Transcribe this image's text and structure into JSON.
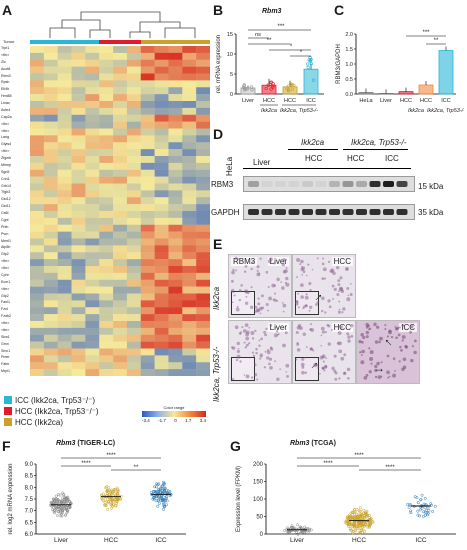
{
  "panels": {
    "A": {
      "label": "A",
      "row_header": "Tumor",
      "rows": [
        "Trpt1",
        "<tbr>",
        "Zic",
        "Acot8",
        "Rbm3",
        "Rpsh",
        "Eif4h",
        "Hmt85",
        "Lmac",
        "Actn4",
        "Cap2a",
        "<tbr>",
        "<tbr>",
        "Lang",
        "Glyts4",
        "<tbr>",
        "Zfgmb",
        "Mhmp",
        "Sgn5",
        "Cnn1",
        "Grb14",
        "Tfgb3",
        "Gst12",
        "Gst11",
        "Ca6l",
        "Cgnl",
        "Prkh",
        "Pvrn",
        "Mmrl1",
        "Atp5b",
        "Gtp2",
        "<tbr>",
        "<tbr>",
        "Cphr",
        "Ecm1",
        "<tbr>",
        "Gtp2",
        "Fanl1",
        "Fzxt",
        "Fzdb2",
        "<tbr>",
        "<tbr>",
        "Skw1",
        "Gmn",
        "Smc1",
        "Pmer",
        "Fatm",
        "Mrpl1"
      ],
      "colorbar_title": "Color range",
      "colorbar_ticks": [
        "-3.4",
        "-1.7",
        "0",
        "1.7",
        "3.4"
      ],
      "groups": [
        {
          "name": "ICC",
          "genotype": "(Ikk2ca, Trp53-/-)",
          "color": "#2ab6d6"
        },
        {
          "name": "HCC",
          "genotype": "(Ikk2ca, Trp53-/-)",
          "color": "#e31a2c"
        },
        {
          "name": "HCC",
          "genotype": "(Ikk2ca)",
          "color": "#c9a227"
        }
      ],
      "legend": [
        {
          "text": "ICC (Ikk2ca, Trp53⁻/⁻)",
          "color": "#2ab6d6"
        },
        {
          "text": "HCC (Ikk2ca, Trp53⁻/⁻)",
          "color": "#e31a2c"
        },
        {
          "text": "HCC (Ikk2ca)",
          "color": "#c9a227"
        }
      ]
    },
    "B": {
      "label": "B",
      "gene": "Rbm3",
      "ylabel": "rel. mRNA expression",
      "sig": [
        "***",
        "ns",
        "**",
        "*",
        "*"
      ],
      "xgroups": [
        "Liver",
        "HCC",
        "HCC",
        "ICC"
      ],
      "geno1": "Ikk2ca",
      "geno2": "Ikk2ca, Trp53-/-",
      "yticks": [
        "0",
        "5",
        "10",
        "15"
      ]
    },
    "C": {
      "label": "C",
      "ylabel": "RBM3/GAPDH",
      "xgroups": [
        "HeLa",
        "Liver",
        "HCC",
        "HCC",
        "ICC"
      ],
      "geno1": "Ikk2ca",
      "geno2": "Ikk2ca, Trp53-/-",
      "sig": [
        "***",
        "**"
      ],
      "yticks": [
        "0.0",
        "0.5",
        "1.0",
        "1.5",
        "2.0"
      ]
    },
    "D": {
      "label": "D",
      "header1": "Ikk2ca",
      "header2": "Ikk2ca, Trp53-/-",
      "lanes": [
        "HeLa",
        "Liver",
        "HCC",
        "HCC",
        "ICC"
      ],
      "rows": [
        "RBM3",
        "GAPDH"
      ],
      "markers": [
        "15 kDa",
        "35 kDa"
      ]
    },
    "E": {
      "label": "E",
      "row1": "Ikk2ca",
      "row2": "Ikk2ca, Trp53-/-",
      "tiles": [
        "RBM3",
        "Liver",
        "HCC",
        "Liver",
        "HCC",
        "ICC"
      ]
    },
    "F": {
      "label": "F",
      "title_gene": "Rbm3",
      "title_source": "(TIGER-LC)",
      "ylabel": "rel. log2 mRNA expression",
      "xgroups": [
        "Liver",
        "HCC",
        "ICC"
      ],
      "sig": [
        "****",
        "****",
        "**"
      ],
      "yticks": [
        "6.0",
        "6.5",
        "7.0",
        "7.5",
        "8.0",
        "8.5",
        "9.0"
      ]
    },
    "G": {
      "label": "G",
      "title_gene": "Rbm3",
      "title_source": "(TCGA)",
      "ylabel": "Expression level (FPKM)",
      "xgroups": [
        "Liver",
        "HCC",
        "ICC"
      ],
      "sig": [
        "****",
        "****",
        "****"
      ],
      "yticks": [
        "0",
        "50",
        "100",
        "150",
        "200"
      ]
    }
  },
  "colors": {
    "heat_low": "#2b59c3",
    "heat_mid": "#f5e99a",
    "heat_high": "#d7261e",
    "icc": "#2ab6d6",
    "hcc_p53": "#e31a2c",
    "hcc": "#c9a227",
    "hist_stain": "#8a5a8c"
  }
}
